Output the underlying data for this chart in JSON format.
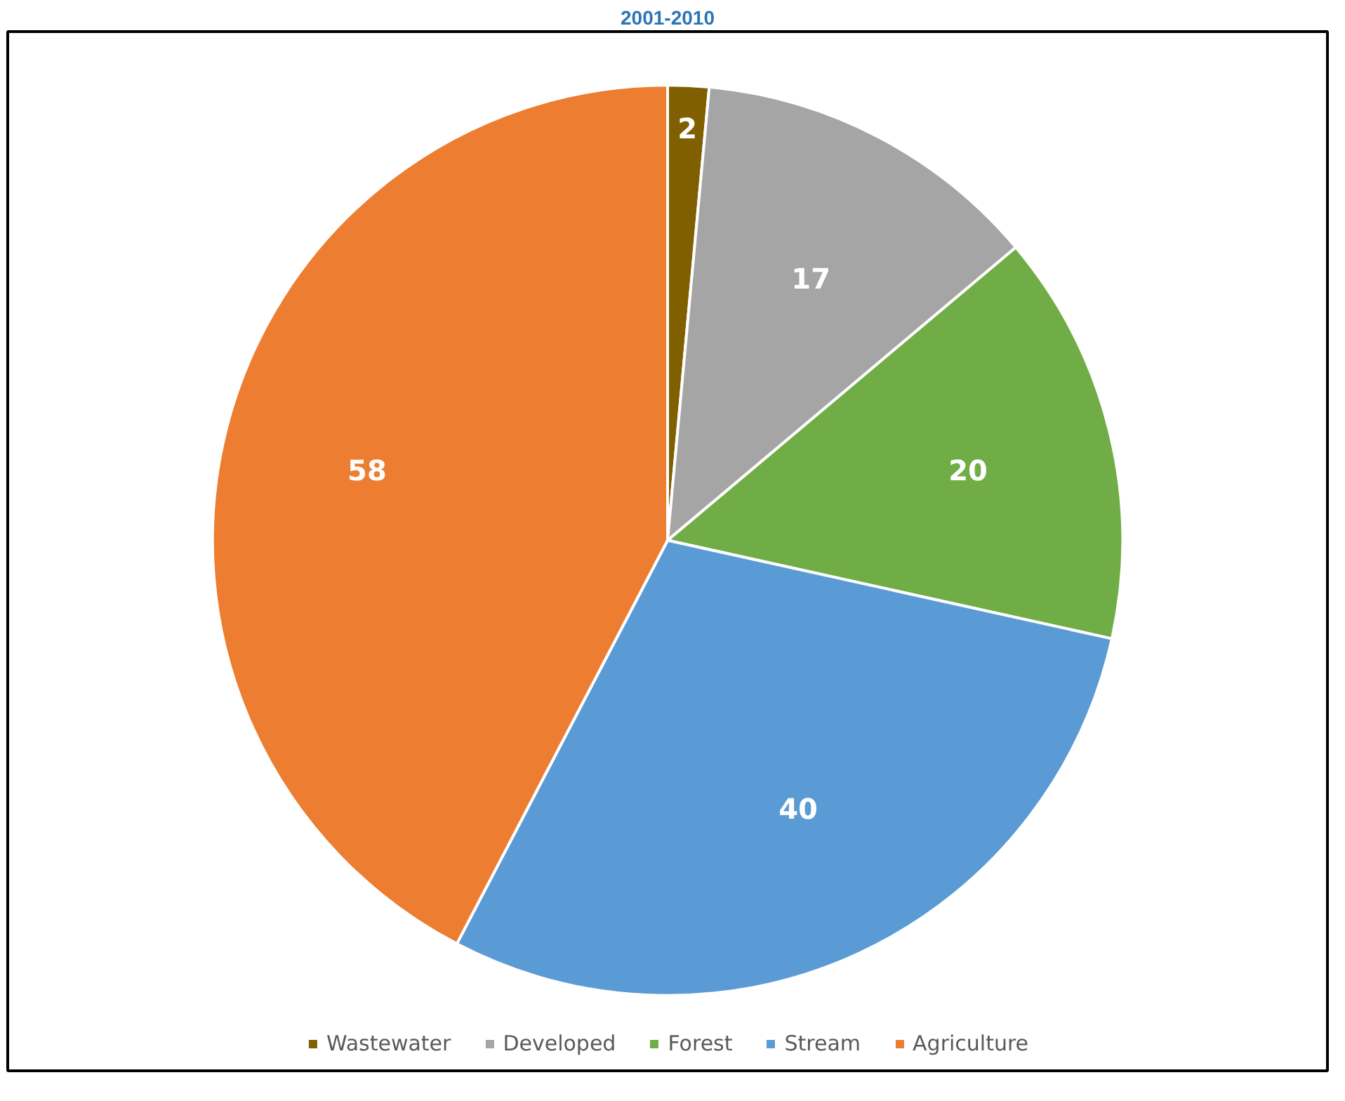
{
  "chart_data": {
    "type": "pie",
    "title": "2001-2010",
    "categories": [
      "Wastewater",
      "Developed",
      "Forest",
      "Stream",
      "Agriculture"
    ],
    "values": [
      2,
      17,
      20,
      40,
      58
    ],
    "colors": [
      "#7f5f00",
      "#a5a5a5",
      "#70ad47",
      "#5b9bd5",
      "#ed7d31"
    ],
    "data_labels": true,
    "legend": "bottom"
  }
}
